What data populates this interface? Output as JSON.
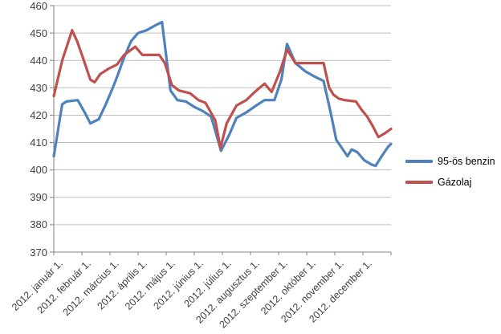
{
  "chart_data": {
    "type": "line",
    "title": "",
    "xlabel": "",
    "ylabel": "",
    "ylim": [
      370,
      460
    ],
    "y_ticks": [
      370,
      380,
      390,
      400,
      410,
      420,
      430,
      440,
      450,
      460
    ],
    "grid": "horizontal",
    "legend_position": "right",
    "categories": [
      "2012. január 1.",
      "2012. február 1.",
      "2012. március 1.",
      "2012. április 1.",
      "2012. május 1.",
      "2012. június 1.",
      "2012. július 1.",
      "2012. augusztus 1.",
      "2012. szeptember 1.",
      "2012. október 1.",
      "2012. november 1.",
      "2012. december 1."
    ],
    "x_unit": "months from 2012-01-01, axis spans 0..12",
    "series": [
      {
        "name": "95-ös benzin",
        "color": "#4F81BD",
        "points": [
          [
            0,
            405
          ],
          [
            0.3,
            424
          ],
          [
            0.45,
            425
          ],
          [
            0.85,
            425.5
          ],
          [
            1.1,
            421
          ],
          [
            1.3,
            417
          ],
          [
            1.6,
            418.5
          ],
          [
            1.85,
            424
          ],
          [
            2.1,
            430
          ],
          [
            2.25,
            434
          ],
          [
            2.5,
            441
          ],
          [
            2.75,
            447
          ],
          [
            3.0,
            450
          ],
          [
            3.3,
            451
          ],
          [
            3.65,
            453
          ],
          [
            3.85,
            454
          ],
          [
            4.15,
            429
          ],
          [
            4.4,
            425.5
          ],
          [
            4.7,
            425
          ],
          [
            5.0,
            423
          ],
          [
            5.3,
            421.5
          ],
          [
            5.6,
            419.5
          ],
          [
            5.95,
            407
          ],
          [
            6.25,
            413
          ],
          [
            6.5,
            419
          ],
          [
            6.85,
            421
          ],
          [
            7.2,
            423.5
          ],
          [
            7.5,
            425.5
          ],
          [
            7.85,
            425.5
          ],
          [
            8.1,
            433
          ],
          [
            8.3,
            446
          ],
          [
            8.6,
            439
          ],
          [
            8.95,
            436
          ],
          [
            9.3,
            434
          ],
          [
            9.6,
            432.5
          ],
          [
            9.85,
            421
          ],
          [
            10.05,
            411
          ],
          [
            10.45,
            405
          ],
          [
            10.6,
            407.5
          ],
          [
            10.8,
            406.5
          ],
          [
            11.05,
            403.5
          ],
          [
            11.3,
            402
          ],
          [
            11.45,
            401.5
          ],
          [
            11.7,
            405.5
          ],
          [
            11.9,
            408.5
          ],
          [
            12,
            409.5
          ]
        ]
      },
      {
        "name": "Gázolaj",
        "color": "#C0504D",
        "points": [
          [
            0,
            427
          ],
          [
            0.3,
            440
          ],
          [
            0.65,
            451
          ],
          [
            0.83,
            447
          ],
          [
            0.97,
            443
          ],
          [
            1.3,
            433
          ],
          [
            1.45,
            432
          ],
          [
            1.65,
            435
          ],
          [
            1.95,
            437
          ],
          [
            2.25,
            438.5
          ],
          [
            2.5,
            442
          ],
          [
            2.9,
            445
          ],
          [
            3.15,
            442
          ],
          [
            3.75,
            442
          ],
          [
            3.95,
            439
          ],
          [
            4.2,
            431
          ],
          [
            4.45,
            429
          ],
          [
            4.85,
            428
          ],
          [
            5.15,
            425.5
          ],
          [
            5.4,
            424.5
          ],
          [
            5.75,
            418
          ],
          [
            5.93,
            408
          ],
          [
            6.15,
            417
          ],
          [
            6.5,
            423.5
          ],
          [
            6.85,
            425.5
          ],
          [
            7.15,
            428.5
          ],
          [
            7.5,
            431.5
          ],
          [
            7.75,
            428.5
          ],
          [
            8.05,
            436
          ],
          [
            8.3,
            444
          ],
          [
            8.6,
            439
          ],
          [
            9.6,
            439
          ],
          [
            9.8,
            430
          ],
          [
            9.95,
            427.5
          ],
          [
            10.15,
            426
          ],
          [
            10.35,
            425.5
          ],
          [
            10.75,
            425
          ],
          [
            10.95,
            422
          ],
          [
            11.15,
            419.5
          ],
          [
            11.35,
            416
          ],
          [
            11.55,
            412
          ],
          [
            11.8,
            413.5
          ],
          [
            12,
            415
          ]
        ]
      }
    ],
    "colors": {
      "gridline": "#BFBFBF",
      "axis": "#808080",
      "tick_label": "#3F3F3F"
    }
  }
}
